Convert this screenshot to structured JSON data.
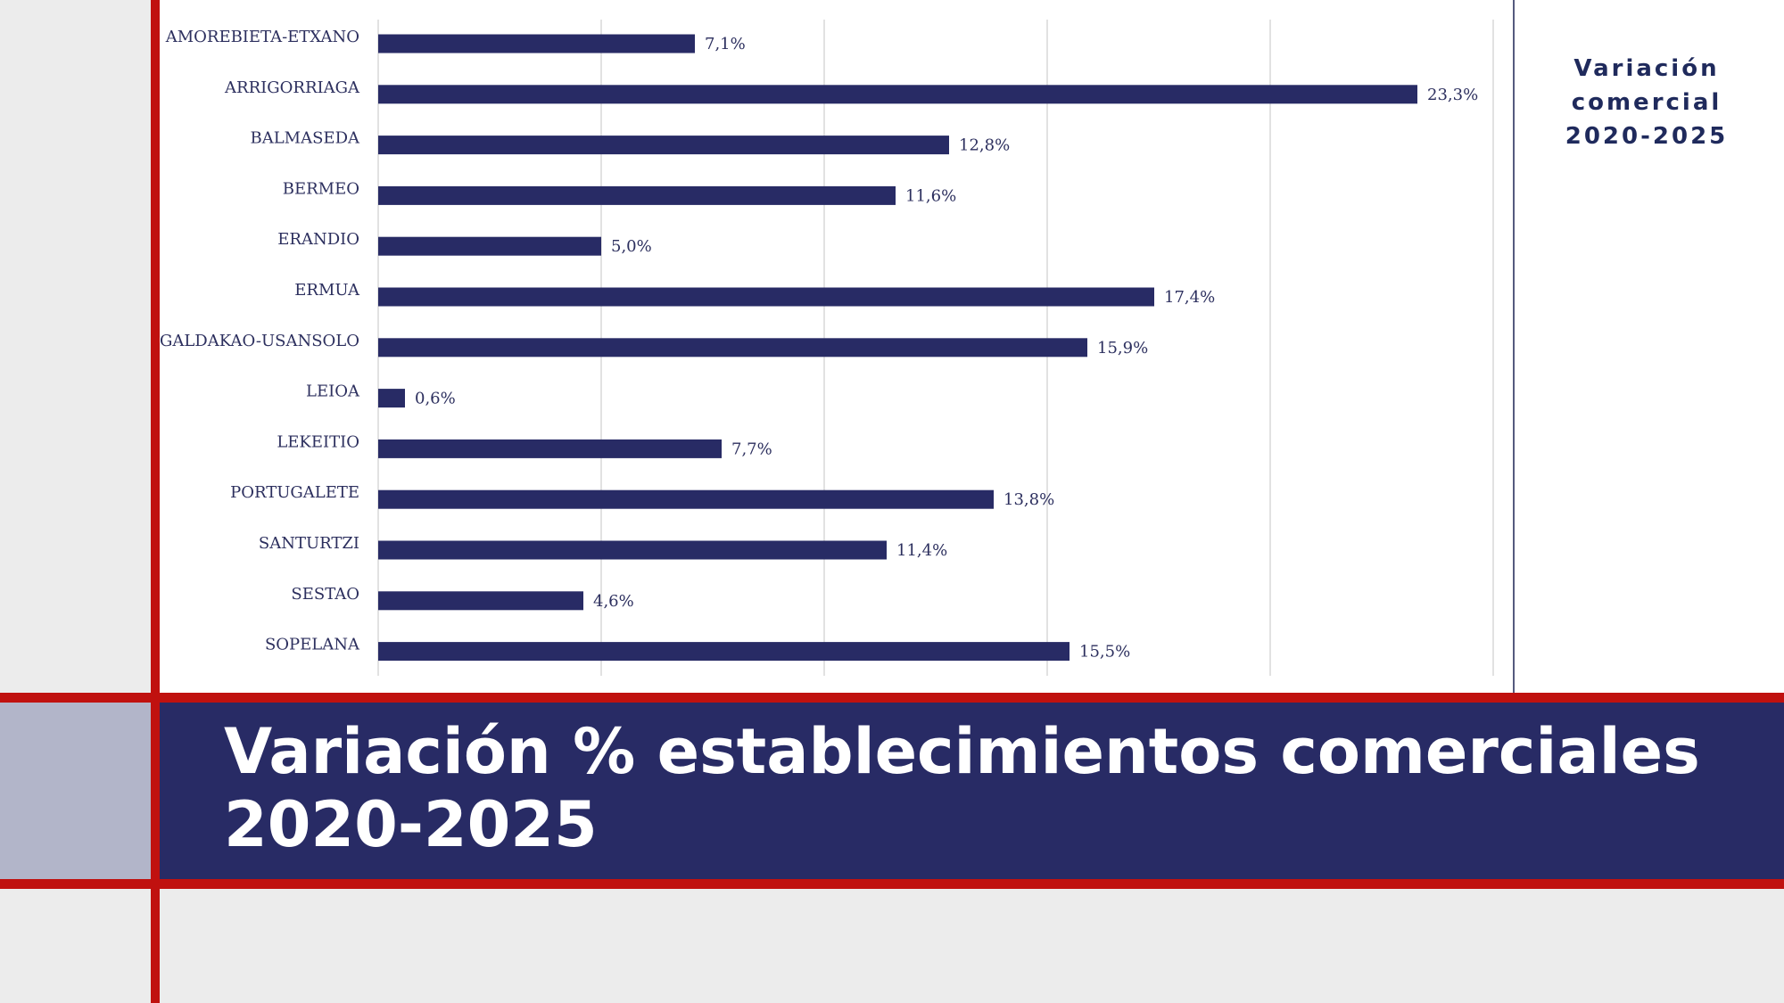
{
  "side_label": {
    "line1": "Variación",
    "line2": "comercial",
    "line3": "2020-2025"
  },
  "banner": {
    "title_line1": "Variación % establecimientos comerciales",
    "title_line2": "2020-2025"
  },
  "colors": {
    "bar": "#282b65",
    "accent_red": "#c0110f",
    "text": "#2c2f5e",
    "grid": "#d8d8d8"
  },
  "chart_data": {
    "type": "bar",
    "orientation": "horizontal",
    "categories": [
      "AMOREBIETA-ETXANO",
      "ARRIGORRIAGA",
      "BALMASEDA",
      "BERMEO",
      "ERANDIO",
      "ERMUA",
      "GALDAKAO-USANSOLO",
      "LEIOA",
      "LEKEITIO",
      "PORTUGALETE",
      "SANTURTZI",
      "SESTAO",
      "SOPELANA"
    ],
    "values": [
      7.1,
      23.3,
      12.8,
      11.6,
      5.0,
      17.4,
      15.9,
      0.6,
      7.7,
      13.8,
      11.4,
      4.6,
      15.5
    ],
    "value_labels": [
      "7,1%",
      "23,3%",
      "12,8%",
      "11,6%",
      "5,0%",
      "17,4%",
      "15,9%",
      "0,6%",
      "7,7%",
      "13,8%",
      "11,4%",
      "4,6%",
      "15,5%"
    ],
    "xlim": [
      0,
      25
    ],
    "grid": true,
    "gridline_step": 5
  }
}
